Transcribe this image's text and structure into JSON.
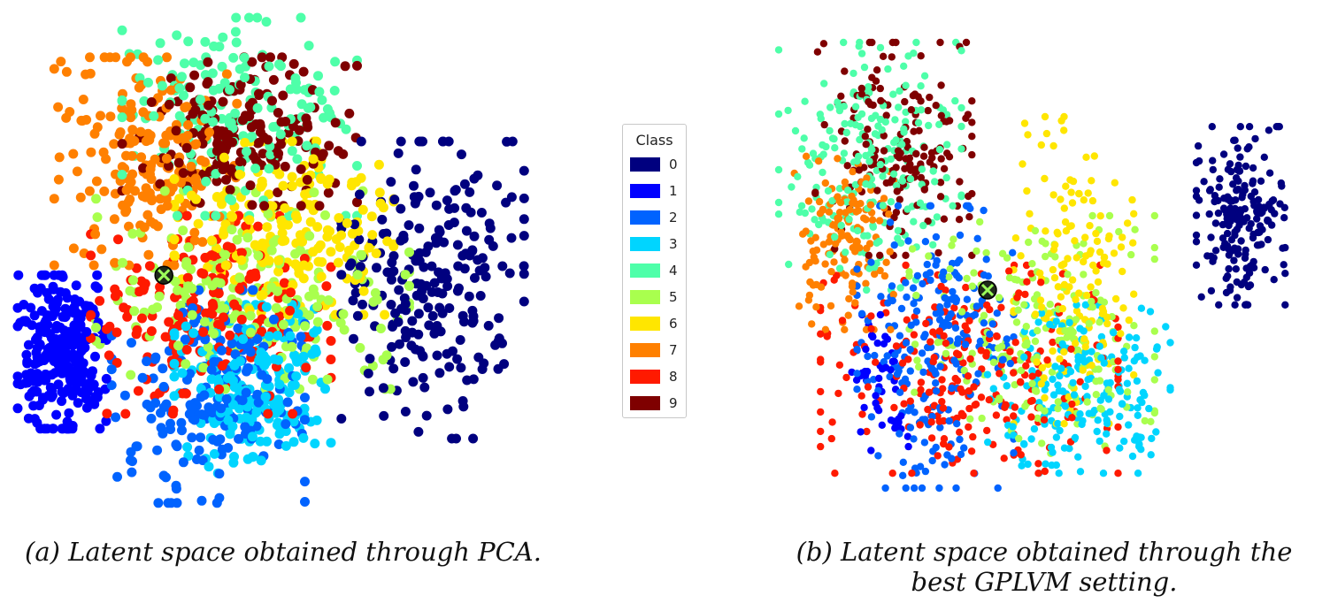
{
  "legend": {
    "title": "Class",
    "items": [
      {
        "label": "0",
        "color": "#00007f"
      },
      {
        "label": "1",
        "color": "#0000ff"
      },
      {
        "label": "2",
        "color": "#0063ff"
      },
      {
        "label": "3",
        "color": "#00d5ff"
      },
      {
        "label": "4",
        "color": "#4effa9"
      },
      {
        "label": "5",
        "color": "#a9ff4e"
      },
      {
        "label": "6",
        "color": "#ffe600"
      },
      {
        "label": "7",
        "color": "#ff8000"
      },
      {
        "label": "8",
        "color": "#ff1a00"
      },
      {
        "label": "9",
        "color": "#7f0000"
      }
    ]
  },
  "captions": {
    "a": "(a) Latent space obtained through PCA.",
    "b_line1": "(b) Latent space obtained through the",
    "b_line2": "best GPLVM setting."
  },
  "chart_data": [
    {
      "type": "scatter",
      "marker": "filled circles colored by class; one highlighted point marked with a black-edged circle and green x",
      "axes_visible": false,
      "grid": false,
      "legend": "shared, between panels",
      "clusters": [
        {
          "class": "0",
          "x": [
            0.62,
            0.97
          ],
          "y": [
            0.25,
            0.85
          ],
          "n": 230
        },
        {
          "class": "1",
          "x": [
            0.0,
            0.17
          ],
          "y": [
            0.52,
            0.83
          ],
          "n": 270
        },
        {
          "class": "2",
          "x": [
            0.18,
            0.55
          ],
          "y": [
            0.55,
            0.98
          ],
          "n": 190
        },
        {
          "class": "3",
          "x": [
            0.3,
            0.6
          ],
          "y": [
            0.58,
            0.92
          ],
          "n": 220
        },
        {
          "class": "4",
          "x": [
            0.2,
            0.65
          ],
          "y": [
            0.0,
            0.4
          ],
          "n": 170
        },
        {
          "class": "5",
          "x": [
            0.15,
            0.75
          ],
          "y": [
            0.35,
            0.75
          ],
          "n": 200
        },
        {
          "class": "6",
          "x": [
            0.3,
            0.72
          ],
          "y": [
            0.25,
            0.6
          ],
          "n": 200
        },
        {
          "class": "7",
          "x": [
            0.07,
            0.42
          ],
          "y": [
            0.08,
            0.5
          ],
          "n": 200
        },
        {
          "class": "8",
          "x": [
            0.14,
            0.6
          ],
          "y": [
            0.4,
            0.8
          ],
          "n": 200
        },
        {
          "class": "9",
          "x": [
            0.2,
            0.65
          ],
          "y": [
            0.08,
            0.38
          ],
          "n": 190
        }
      ],
      "highlight": {
        "x": 0.28,
        "y": 0.52
      }
    },
    {
      "type": "scatter",
      "marker": "filled circles colored by class; one highlighted point marked with a black-edged circle and green x",
      "axes_visible": false,
      "grid": false,
      "legend": "shared, between panels",
      "clusters": [
        {
          "class": "0",
          "x": [
            0.8,
            0.97
          ],
          "y": [
            0.22,
            0.58
          ],
          "n": 200
        },
        {
          "class": "1",
          "x": [
            0.14,
            0.25
          ],
          "y": [
            0.6,
            0.88
          ],
          "n": 50
        },
        {
          "class": "2",
          "x": [
            0.15,
            0.45
          ],
          "y": [
            0.38,
            0.95
          ],
          "n": 230
        },
        {
          "class": "3",
          "x": [
            0.4,
            0.75
          ],
          "y": [
            0.58,
            0.92
          ],
          "n": 200
        },
        {
          "class": "4",
          "x": [
            0.0,
            0.35
          ],
          "y": [
            0.05,
            0.55
          ],
          "n": 220
        },
        {
          "class": "5",
          "x": [
            0.25,
            0.72
          ],
          "y": [
            0.4,
            0.88
          ],
          "n": 210
        },
        {
          "class": "6",
          "x": [
            0.45,
            0.68
          ],
          "y": [
            0.2,
            0.82
          ],
          "n": 160
        },
        {
          "class": "7",
          "x": [
            0.03,
            0.22
          ],
          "y": [
            0.28,
            0.63
          ],
          "n": 140
        },
        {
          "class": "8",
          "x": [
            0.08,
            0.65
          ],
          "y": [
            0.5,
            0.92
          ],
          "n": 250
        },
        {
          "class": "9",
          "x": [
            0.07,
            0.37
          ],
          "y": [
            0.05,
            0.48
          ],
          "n": 170
        }
      ],
      "highlight": {
        "x": 0.4,
        "y": 0.55
      }
    }
  ]
}
